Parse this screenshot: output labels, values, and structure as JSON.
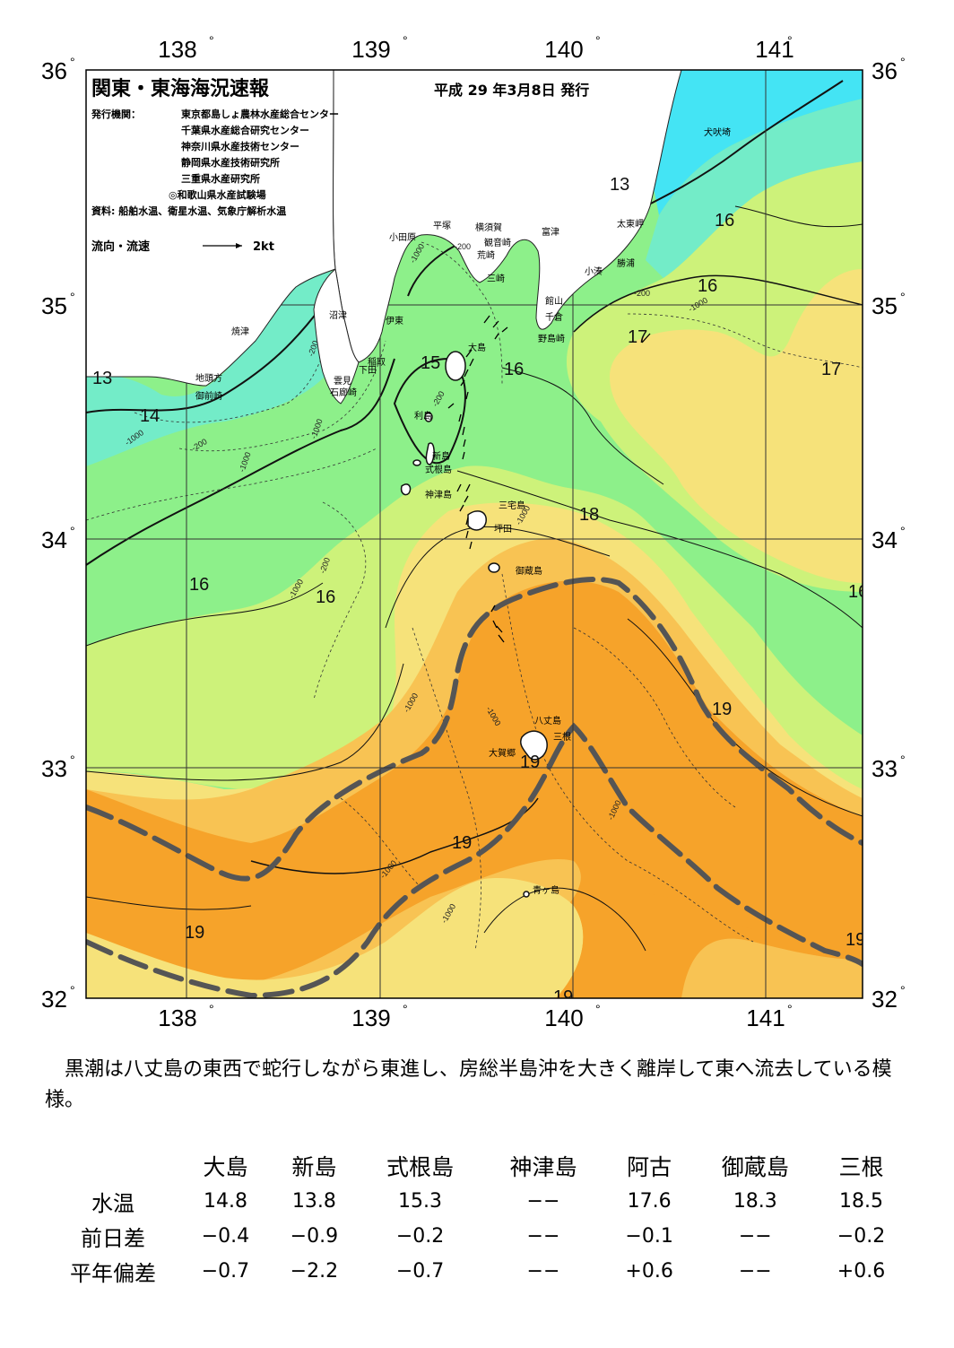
{
  "map": {
    "title": "関東・東海海況速報",
    "date": "平成 29 年3月8日 発行",
    "publishers_label": "発行機関：",
    "publishers": [
      "東京都島しょ農林水産総合センター",
      "千葉県水産総合研究センター",
      "神奈川県水産技術センター",
      "静岡県水産技術研究所",
      "三重県水産研究所",
      "◎和歌山県水産試験場"
    ],
    "source": "資料: 船舶水温、衛星水温、気象庁解析水温",
    "legend_flow": "流向・流速",
    "legend_speed": "2kt",
    "lon_ticks": [
      "138",
      "139",
      "140",
      "141"
    ],
    "lat_ticks": [
      "36",
      "35",
      "34",
      "33",
      "32"
    ],
    "degree_mark": "°",
    "colors": {
      "cyan": "#44e4f4",
      "teal": "#73ecc8",
      "green": "#8df08a",
      "yellowgreen": "#cdf27a",
      "yellow": "#f6e27a",
      "lightorange": "#f8c353",
      "orange": "#f6a32a",
      "kuroshio_axis": "#555555"
    },
    "isotherms": [
      "13",
      "13",
      "14",
      "15",
      "16",
      "16",
      "16",
      "16",
      "17",
      "17",
      "16",
      "18",
      "19",
      "19",
      "19",
      "19",
      "19",
      "19"
    ],
    "depth_labels": [
      "-200",
      "-1000",
      "-200",
      "-1000",
      "-200",
      "-1000",
      "-200",
      "-1000",
      "-200",
      "-1000",
      "-1000",
      "-1000",
      "-1000",
      "-1000",
      "-1000",
      "-1000",
      "-200",
      "-1000"
    ],
    "places": [
      "犬吠埼",
      "太東岬",
      "勝浦",
      "小湊",
      "富津",
      "横須賀",
      "観音崎",
      "平塚",
      "小田原",
      "荒崎",
      "三崎",
      "館山",
      "千倉",
      "野島崎",
      "沼津",
      "伊東",
      "焼津",
      "稲取",
      "下田",
      "雲見",
      "石廊崎",
      "地頭方",
      "御前崎",
      "大島",
      "利島",
      "新島",
      "式根島",
      "神津島",
      "三宅島",
      "坪田",
      "御蔵島",
      "八丈島",
      "三根",
      "大賀郷",
      "青ヶ島"
    ]
  },
  "summary": "黒潮は八丈島の東西で蛇行しながら東進し、房総半島沖を大きく離岸して東へ流去している模様。",
  "table": {
    "stations": [
      "大島",
      "新島",
      "式根島",
      "神津島",
      "阿古",
      "御蔵島",
      "三根"
    ],
    "rows": [
      {
        "label": "水温",
        "values": [
          "14.8",
          "13.8",
          "15.3",
          "−−",
          "17.6",
          "18.3",
          "18.5"
        ]
      },
      {
        "label": "前日差",
        "values": [
          "−0.4",
          "−0.9",
          "−0.2",
          "−−",
          "−0.1",
          "−−",
          "−0.2"
        ]
      },
      {
        "label": "平年偏差",
        "values": [
          "−0.7",
          "−2.2",
          "−0.7",
          "−−",
          "+0.6",
          "−−",
          "+0.6"
        ]
      }
    ]
  }
}
